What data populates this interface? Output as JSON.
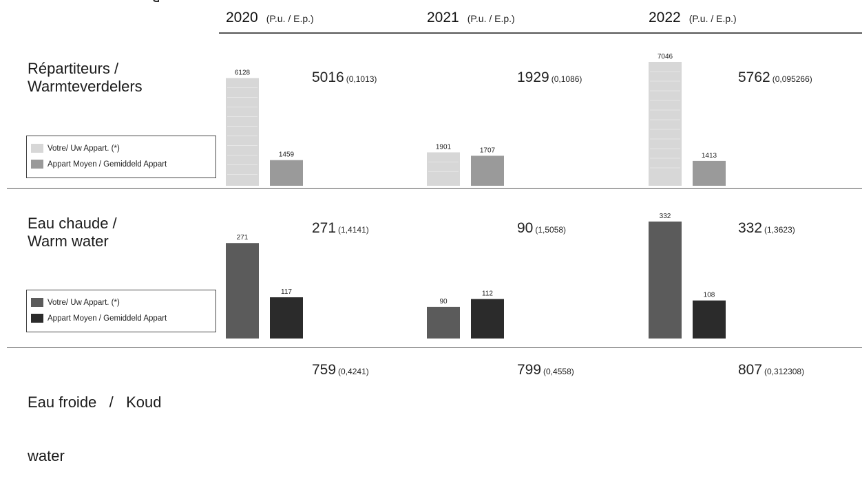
{
  "years": [
    {
      "year": "2020",
      "unit": "(P.u. / E.p.)"
    },
    {
      "year": "2021",
      "unit": "(P.u. / E.p.)"
    },
    {
      "year": "2022",
      "unit": "(P.u. / E.p.)"
    }
  ],
  "rows": [
    {
      "label_line1": "Répartiteurs /",
      "label_line2": "Warmteverdelers",
      "totals": [
        {
          "value": "5016",
          "coef": "(0,1013)"
        },
        {
          "value": "1929",
          "coef": "(0,1086)"
        },
        {
          "value": "5762",
          "coef": "(0,095266)"
        }
      ],
      "legend": [
        "Votre/ Uw Appart. (*)",
        "Appart Moyen / Gemiddeld Appart"
      ]
    },
    {
      "label_line1": "Eau chaude /",
      "label_line2": "Warm water",
      "totals": [
        {
          "value": "271",
          "coef": "(1,4141)"
        },
        {
          "value": "90",
          "coef": "(1,5058)"
        },
        {
          "value": "332",
          "coef": "(1,3623)"
        }
      ],
      "legend": [
        "Votre/ Uw Appart. (*)",
        "Appart Moyen / Gemiddeld Appart"
      ]
    },
    {
      "label_line1": "Eau froide   /   Koud",
      "label_line2": "water",
      "totals": [
        {
          "value": "759",
          "coef": "(0,4241)"
        },
        {
          "value": "799",
          "coef": "(0,4558)"
        },
        {
          "value": "807",
          "coef": "(0,312308)"
        }
      ]
    }
  ],
  "colors": {
    "heat_apartment": "#d7d7d7",
    "heat_average": "#9a9a9a",
    "water_apartment": "#5b5b5b",
    "water_average": "#2b2b2b"
  },
  "chart_data": [
    {
      "type": "bar",
      "categories": [
        "2020",
        "2021",
        "2022"
      ],
      "series": [
        {
          "name": "Votre/ Uw Appart. (*)",
          "values": [
            6128,
            1901,
            7046
          ]
        },
        {
          "name": "Appart Moyen / Gemiddeld Appart",
          "values": [
            1459,
            1707,
            1413
          ]
        }
      ],
      "data_labels": [
        [
          "6128",
          "1901",
          "7046"
        ],
        [
          "1459",
          "1707",
          "1413"
        ]
      ],
      "ylim": [
        0,
        7046
      ],
      "legend": "bottom-left"
    },
    {
      "type": "bar",
      "categories": [
        "2020",
        "2021",
        "2022"
      ],
      "series": [
        {
          "name": "Votre/ Uw Appart. (*)",
          "values": [
            271,
            90,
            332
          ]
        },
        {
          "name": "Appart Moyen / Gemiddeld Appart",
          "values": [
            117,
            112,
            108
          ]
        }
      ],
      "data_labels": [
        [
          "271",
          "90",
          "332"
        ],
        [
          "117",
          "112",
          "108"
        ]
      ],
      "ylim": [
        0,
        332
      ],
      "legend": "bottom-left"
    }
  ]
}
